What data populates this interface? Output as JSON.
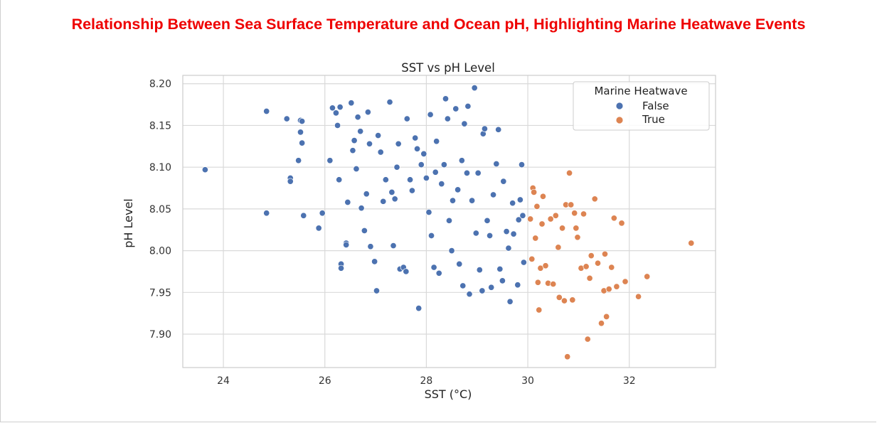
{
  "page_title": "Relationship Between Sea Surface Temperature and Ocean pH, Highlighting Marine Heatwave Events",
  "colors": {
    "title": "#ee0000",
    "false": "#4c72b0",
    "true": "#dd8452",
    "grid": "#d9d9d9"
  },
  "chart_data": {
    "type": "scatter",
    "title": "SST vs pH Level",
    "xlabel": "SST (°C)",
    "ylabel": "pH Level",
    "xlim": [
      23.2,
      33.7
    ],
    "ylim": [
      7.86,
      8.21
    ],
    "xticks": [
      24,
      26,
      28,
      30,
      32
    ],
    "xtick_labels": [
      "24",
      "26",
      "28",
      "30",
      "32"
    ],
    "yticks": [
      7.9,
      7.95,
      8.0,
      8.05,
      8.1,
      8.15,
      8.2
    ],
    "ytick_labels": [
      "7.90",
      "7.95",
      "8.00",
      "8.05",
      "8.10",
      "8.15",
      "8.20"
    ],
    "grid": true,
    "legend": {
      "title": "Marine Heatwave",
      "placement": "top-right"
    },
    "series": [
      {
        "name": "False",
        "color": "#4c72b0",
        "points": [
          [
            23.64,
            8.097
          ],
          [
            24.85,
            8.167
          ],
          [
            24.85,
            8.045
          ],
          [
            25.25,
            8.158
          ],
          [
            25.32,
            8.087
          ],
          [
            25.32,
            8.083
          ],
          [
            25.48,
            8.108
          ],
          [
            25.52,
            8.156
          ],
          [
            25.55,
            8.155
          ],
          [
            25.52,
            8.142
          ],
          [
            25.55,
            8.129
          ],
          [
            25.58,
            8.042
          ],
          [
            25.88,
            8.027
          ],
          [
            25.95,
            8.045
          ],
          [
            26.1,
            8.108
          ],
          [
            26.15,
            8.171
          ],
          [
            26.22,
            8.165
          ],
          [
            26.25,
            8.15
          ],
          [
            26.28,
            8.085
          ],
          [
            26.3,
            8.172
          ],
          [
            26.32,
            7.984
          ],
          [
            26.32,
            7.979
          ],
          [
            26.42,
            8.009
          ],
          [
            26.42,
            8.007
          ],
          [
            26.45,
            8.058
          ],
          [
            26.52,
            8.177
          ],
          [
            26.55,
            8.12
          ],
          [
            26.58,
            8.132
          ],
          [
            26.62,
            8.098
          ],
          [
            26.65,
            8.16
          ],
          [
            26.7,
            8.143
          ],
          [
            26.72,
            8.051
          ],
          [
            26.78,
            8.024
          ],
          [
            26.82,
            8.068
          ],
          [
            26.85,
            8.166
          ],
          [
            26.88,
            8.128
          ],
          [
            26.9,
            8.005
          ],
          [
            26.98,
            7.987
          ],
          [
            27.02,
            7.952
          ],
          [
            27.05,
            8.138
          ],
          [
            27.1,
            8.118
          ],
          [
            27.15,
            8.059
          ],
          [
            27.2,
            8.085
          ],
          [
            27.28,
            8.178
          ],
          [
            27.32,
            8.07
          ],
          [
            27.35,
            8.006
          ],
          [
            27.38,
            8.062
          ],
          [
            27.42,
            8.1
          ],
          [
            27.45,
            8.128
          ],
          [
            27.48,
            7.978
          ],
          [
            27.55,
            7.98
          ],
          [
            27.6,
            7.975
          ],
          [
            27.62,
            8.158
          ],
          [
            27.68,
            8.085
          ],
          [
            27.72,
            8.072
          ],
          [
            27.78,
            8.135
          ],
          [
            27.82,
            8.122
          ],
          [
            27.85,
            7.931
          ],
          [
            27.9,
            8.103
          ],
          [
            27.95,
            8.116
          ],
          [
            28.0,
            8.087
          ],
          [
            28.05,
            8.046
          ],
          [
            28.08,
            8.163
          ],
          [
            28.1,
            8.018
          ],
          [
            28.15,
            7.98
          ],
          [
            28.18,
            8.094
          ],
          [
            28.2,
            8.131
          ],
          [
            28.25,
            7.973
          ],
          [
            28.3,
            8.08
          ],
          [
            28.35,
            8.103
          ],
          [
            28.38,
            8.182
          ],
          [
            28.42,
            8.158
          ],
          [
            28.45,
            8.036
          ],
          [
            28.5,
            8.0
          ],
          [
            28.52,
            8.06
          ],
          [
            28.58,
            8.17
          ],
          [
            28.62,
            8.073
          ],
          [
            28.65,
            7.984
          ],
          [
            28.7,
            8.108
          ],
          [
            28.72,
            7.958
          ],
          [
            28.75,
            8.152
          ],
          [
            28.8,
            8.093
          ],
          [
            28.82,
            8.173
          ],
          [
            28.85,
            7.948
          ],
          [
            28.9,
            8.06
          ],
          [
            28.95,
            8.195
          ],
          [
            28.98,
            8.021
          ],
          [
            29.02,
            8.093
          ],
          [
            29.05,
            7.977
          ],
          [
            29.1,
            7.952
          ],
          [
            29.12,
            8.14
          ],
          [
            29.15,
            8.146
          ],
          [
            29.2,
            8.036
          ],
          [
            29.25,
            8.018
          ],
          [
            29.28,
            7.956
          ],
          [
            29.32,
            8.067
          ],
          [
            29.38,
            8.104
          ],
          [
            29.42,
            8.145
          ],
          [
            29.45,
            7.978
          ],
          [
            29.5,
            7.964
          ],
          [
            29.52,
            8.083
          ],
          [
            29.58,
            8.023
          ],
          [
            29.62,
            8.003
          ],
          [
            29.65,
            7.939
          ],
          [
            29.7,
            8.057
          ],
          [
            29.72,
            8.02
          ],
          [
            29.8,
            7.959
          ],
          [
            29.82,
            8.037
          ],
          [
            29.85,
            8.061
          ],
          [
            29.88,
            8.103
          ],
          [
            29.9,
            8.042
          ],
          [
            29.92,
            7.986
          ]
        ]
      },
      {
        "name": "True",
        "color": "#dd8452",
        "points": [
          [
            30.05,
            8.038
          ],
          [
            30.08,
            7.99
          ],
          [
            30.1,
            8.075
          ],
          [
            30.12,
            8.07
          ],
          [
            30.15,
            8.015
          ],
          [
            30.18,
            8.053
          ],
          [
            30.2,
            7.962
          ],
          [
            30.22,
            7.929
          ],
          [
            30.25,
            7.979
          ],
          [
            30.28,
            8.032
          ],
          [
            30.3,
            8.065
          ],
          [
            30.35,
            7.982
          ],
          [
            30.4,
            7.961
          ],
          [
            30.45,
            8.038
          ],
          [
            30.5,
            7.96
          ],
          [
            30.55,
            8.042
          ],
          [
            30.6,
            8.004
          ],
          [
            30.62,
            7.944
          ],
          [
            30.68,
            8.027
          ],
          [
            30.72,
            7.94
          ],
          [
            30.75,
            8.055
          ],
          [
            30.78,
            7.873
          ],
          [
            30.82,
            8.093
          ],
          [
            30.85,
            8.055
          ],
          [
            30.88,
            7.941
          ],
          [
            30.92,
            8.045
          ],
          [
            30.95,
            8.027
          ],
          [
            30.98,
            8.016
          ],
          [
            31.05,
            7.979
          ],
          [
            31.1,
            8.044
          ],
          [
            31.15,
            7.981
          ],
          [
            31.18,
            7.894
          ],
          [
            31.22,
            7.967
          ],
          [
            31.25,
            7.994
          ],
          [
            31.32,
            8.062
          ],
          [
            31.38,
            7.985
          ],
          [
            31.45,
            7.913
          ],
          [
            31.5,
            7.952
          ],
          [
            31.52,
            7.996
          ],
          [
            31.55,
            7.921
          ],
          [
            31.6,
            7.954
          ],
          [
            31.65,
            7.98
          ],
          [
            31.7,
            8.039
          ],
          [
            31.75,
            7.957
          ],
          [
            31.85,
            8.033
          ],
          [
            31.92,
            7.963
          ],
          [
            32.18,
            7.945
          ],
          [
            32.35,
            7.969
          ],
          [
            33.22,
            8.009
          ]
        ]
      }
    ]
  }
}
